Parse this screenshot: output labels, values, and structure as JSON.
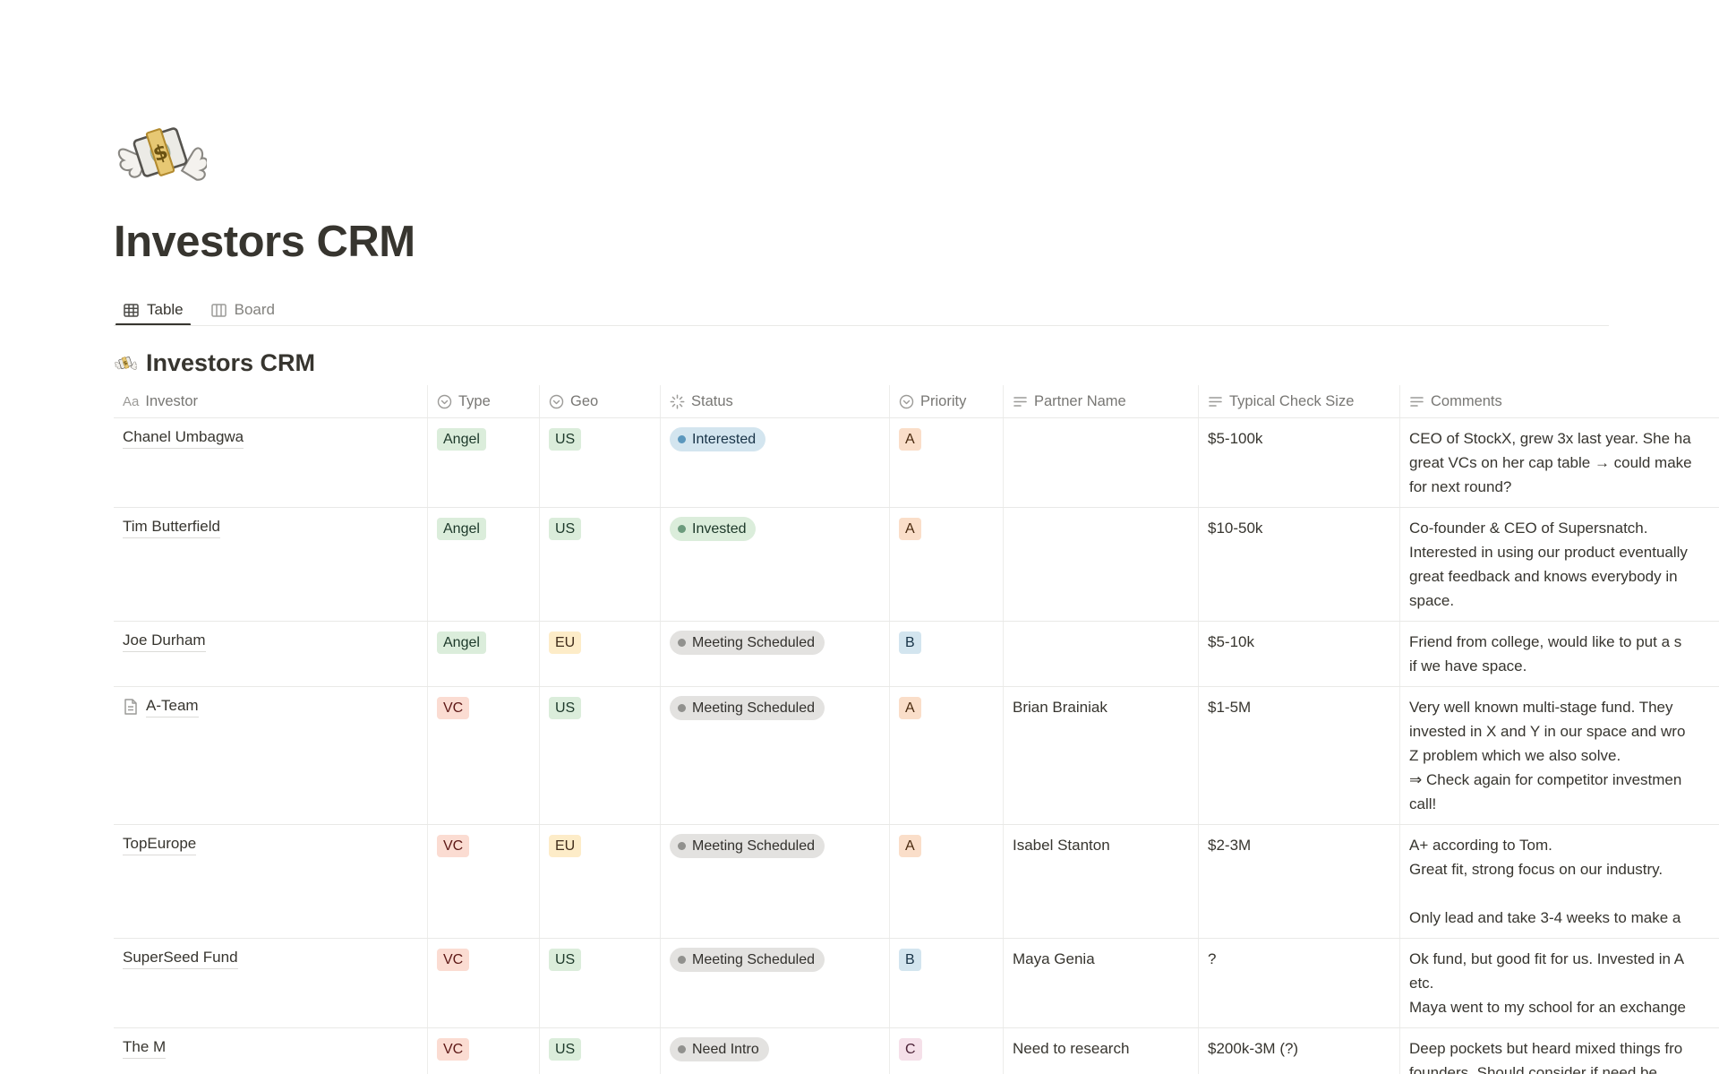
{
  "header": {
    "icon": "money-with-wings-icon",
    "title": "Investors CRM"
  },
  "tabs": [
    {
      "label": "Table",
      "icon": "table-view-icon",
      "active": true
    },
    {
      "label": "Board",
      "icon": "board-view-icon",
      "active": false
    }
  ],
  "section": {
    "icon": "money-with-wings-icon",
    "title": "Investors CRM"
  },
  "colors": {
    "green_bg": "#DBEDDB",
    "green_text": "#1C3829",
    "green_dot": "#6C9B7D",
    "salmon_bg": "#FBDCD2",
    "salmon_text": "#5D1715",
    "orange_bg": "#FADEC9",
    "orange_text": "#49290E",
    "yellow_bg": "#FDECC8",
    "yellow_text": "#402C1B",
    "blue_bg": "#D3E5EF",
    "blue_text": "#183347",
    "blue_dot": "#5B97BD",
    "gray_bg": "#E3E2E0",
    "gray_text": "#32302C",
    "gray_dot": "#91918E",
    "pink_bg": "#F5E0E9",
    "pink_text": "#4C2337",
    "divider": "#E9E9E7",
    "header_text": "#787774"
  },
  "table": {
    "columns": [
      {
        "label": "Investor",
        "icon": "title-property-icon"
      },
      {
        "label": "Type",
        "icon": "select-property-icon"
      },
      {
        "label": "Geo",
        "icon": "select-property-icon"
      },
      {
        "label": "Status",
        "icon": "status-property-icon"
      },
      {
        "label": "Priority",
        "icon": "select-property-icon"
      },
      {
        "label": "Partner Name",
        "icon": "text-property-icon"
      },
      {
        "label": "Typical Check Size",
        "icon": "text-property-icon"
      },
      {
        "label": "Comments",
        "icon": "text-property-icon"
      }
    ],
    "rows": [
      {
        "investor": "Chanel Umbagwa",
        "page_icon": false,
        "type": {
          "label": "Angel",
          "color": "green"
        },
        "geo": {
          "label": "US",
          "color": "green"
        },
        "status": {
          "label": "Interested",
          "color": "blue"
        },
        "priority": {
          "label": "A",
          "color": "orange"
        },
        "partner": "",
        "check_size": "$5-100k",
        "comments": [
          "CEO of StockX, grew 3x last year. She ha",
          "great VCs on her cap table → could make",
          "for next round?"
        ]
      },
      {
        "investor": "Tim Butterfield",
        "page_icon": false,
        "type": {
          "label": "Angel",
          "color": "green"
        },
        "geo": {
          "label": "US",
          "color": "green"
        },
        "status": {
          "label": "Invested",
          "color": "green"
        },
        "priority": {
          "label": "A",
          "color": "orange"
        },
        "partner": "",
        "check_size": "$10-50k",
        "comments": [
          "Co-founder & CEO of Supersnatch.",
          "Interested in using our product eventually",
          "great feedback and knows everybody in",
          "space."
        ]
      },
      {
        "investor": "Joe Durham",
        "page_icon": false,
        "type": {
          "label": "Angel",
          "color": "green"
        },
        "geo": {
          "label": "EU",
          "color": "yellow"
        },
        "status": {
          "label": "Meeting Scheduled",
          "color": "gray"
        },
        "priority": {
          "label": "B",
          "color": "blue"
        },
        "partner": "",
        "check_size": "$5-10k",
        "comments": [
          "Friend from college, would like to put a s",
          "if we have space."
        ]
      },
      {
        "investor": "A-Team",
        "page_icon": true,
        "type": {
          "label": "VC",
          "color": "salmon"
        },
        "geo": {
          "label": "US",
          "color": "green"
        },
        "status": {
          "label": "Meeting Scheduled",
          "color": "gray"
        },
        "priority": {
          "label": "A",
          "color": "orange"
        },
        "partner": "Brian Brainiak",
        "check_size": "$1-5M",
        "comments": [
          "Very well known multi-stage fund. They",
          "invested in X and Y in our space and wro",
          "Z problem which we also solve.",
          "⇒ Check again for competitor investmen",
          "call!"
        ]
      },
      {
        "investor": "TopEurope",
        "page_icon": false,
        "type": {
          "label": "VC",
          "color": "salmon"
        },
        "geo": {
          "label": "EU",
          "color": "yellow"
        },
        "status": {
          "label": "Meeting Scheduled",
          "color": "gray"
        },
        "priority": {
          "label": "A",
          "color": "orange"
        },
        "partner": "Isabel Stanton",
        "check_size": "$2-3M",
        "comments": [
          "A+ according to Tom.",
          "Great fit, strong focus on our industry.",
          "",
          "Only lead and take 3-4 weeks to make a"
        ]
      },
      {
        "investor": "SuperSeed Fund",
        "page_icon": false,
        "type": {
          "label": "VC",
          "color": "salmon"
        },
        "geo": {
          "label": "US",
          "color": "green"
        },
        "status": {
          "label": "Meeting Scheduled",
          "color": "gray"
        },
        "priority": {
          "label": "B",
          "color": "blue"
        },
        "partner": "Maya Genia",
        "check_size": "?",
        "comments": [
          "Ok fund, but good fit for us. Invested in A",
          "etc.",
          "Maya went to my school for an exchange"
        ]
      },
      {
        "investor": "The M",
        "page_icon": false,
        "type": {
          "label": "VC",
          "color": "salmon"
        },
        "geo": {
          "label": "US",
          "color": "green"
        },
        "status": {
          "label": "Need Intro",
          "color": "gray"
        },
        "priority": {
          "label": "C",
          "color": "pink"
        },
        "partner": "Need to research",
        "check_size": "$200k-3M (?)",
        "comments": [
          "Deep pockets but heard mixed things fro",
          "founders. Should consider if need be"
        ]
      }
    ]
  }
}
